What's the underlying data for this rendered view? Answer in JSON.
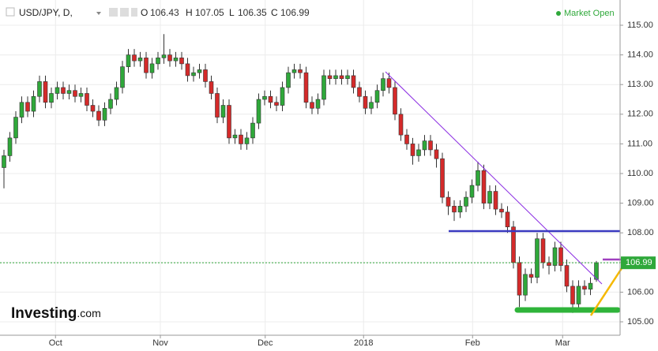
{
  "header": {
    "title": "USD/JPY, D,",
    "o_label": "O",
    "h_label": "H",
    "l_label": "L",
    "c_label": "C",
    "status": "Market Open"
  },
  "logo": {
    "name": "Investing",
    "suffix": ".com"
  },
  "chart_data": {
    "type": "candlestick",
    "open": [
      110.2,
      110.6,
      111.2,
      111.9,
      112.4,
      112.1,
      112.6,
      113.1,
      112.4,
      112.7,
      112.9,
      112.7,
      112.8,
      112.6,
      112.7,
      112.3,
      112.1,
      111.8,
      112.2,
      112.5,
      112.9,
      113.6,
      114.0,
      113.8,
      113.9,
      113.4,
      113.7,
      113.9,
      114.0,
      113.8,
      113.9,
      113.7,
      113.3,
      113.4,
      113.5,
      113.1,
      112.7,
      111.9,
      112.3,
      111.2,
      111.3,
      111.0,
      111.2,
      111.7,
      112.5,
      112.6,
      112.4,
      112.3,
      112.9,
      113.4,
      113.5,
      113.4,
      112.4,
      112.2,
      112.5,
      113.3,
      113.2,
      113.3,
      113.2,
      113.3,
      112.9,
      112.6,
      112.2,
      112.4,
      112.8,
      113.2,
      112.9,
      112.0,
      111.3,
      111.0,
      110.6,
      110.8,
      111.1,
      110.8,
      110.5,
      109.2,
      108.9,
      108.7,
      108.9,
      109.2,
      109.6,
      110.1,
      109.0,
      109.4,
      108.8,
      108.7,
      108.2,
      107.0,
      105.9,
      106.6,
      106.5,
      107.8,
      107.0,
      106.9,
      107.5,
      106.9,
      106.2,
      105.6,
      106.2,
      106.1,
      106.43
    ],
    "high": [
      110.8,
      111.4,
      112.1,
      112.6,
      112.6,
      112.8,
      113.3,
      113.3,
      112.9,
      113.1,
      113.1,
      113.0,
      113.0,
      112.9,
      112.9,
      112.5,
      112.3,
      112.4,
      112.7,
      113.1,
      113.8,
      114.2,
      114.2,
      114.1,
      114.1,
      113.9,
      114.1,
      114.7,
      114.2,
      114.1,
      114.1,
      113.9,
      113.6,
      113.7,
      113.7,
      113.3,
      112.9,
      112.5,
      112.5,
      111.5,
      111.5,
      111.4,
      111.9,
      112.7,
      112.8,
      112.8,
      112.6,
      113.1,
      113.6,
      113.7,
      113.7,
      113.6,
      112.6,
      112.7,
      113.5,
      113.5,
      113.5,
      113.5,
      113.5,
      113.5,
      113.1,
      112.8,
      112.6,
      113.0,
      113.4,
      113.4,
      113.1,
      112.2,
      111.5,
      111.2,
      111.0,
      111.3,
      111.3,
      111.0,
      110.7,
      109.4,
      109.1,
      109.1,
      109.4,
      109.8,
      110.4,
      110.3,
      109.6,
      109.6,
      109.0,
      108.9,
      108.4,
      107.2,
      106.8,
      106.8,
      108.0,
      108.0,
      107.2,
      107.7,
      107.7,
      107.1,
      106.4,
      106.4,
      106.4,
      106.5,
      107.05
    ],
    "low": [
      109.5,
      110.4,
      111.0,
      111.7,
      111.9,
      111.9,
      112.4,
      112.2,
      112.2,
      112.5,
      112.5,
      112.5,
      112.4,
      112.4,
      112.1,
      111.9,
      111.6,
      111.6,
      112.0,
      112.3,
      112.7,
      113.4,
      113.6,
      113.6,
      113.2,
      113.2,
      113.5,
      113.7,
      113.6,
      113.6,
      113.5,
      113.1,
      113.1,
      113.2,
      112.9,
      112.5,
      111.7,
      111.7,
      111.0,
      111.0,
      110.8,
      110.8,
      111.0,
      111.5,
      112.3,
      112.2,
      112.1,
      112.1,
      112.7,
      113.2,
      113.2,
      112.2,
      112.0,
      112.0,
      112.3,
      113.0,
      113.0,
      113.0,
      113.0,
      112.7,
      112.4,
      112.0,
      112.0,
      112.2,
      112.6,
      112.7,
      111.8,
      111.1,
      110.8,
      110.3,
      110.4,
      110.6,
      110.6,
      110.2,
      109.0,
      108.6,
      108.4,
      108.5,
      108.7,
      109.0,
      109.4,
      108.8,
      108.8,
      108.6,
      108.5,
      108.0,
      106.8,
      105.5,
      105.7,
      106.3,
      106.3,
      106.8,
      106.6,
      106.7,
      106.7,
      106.0,
      105.3,
      105.4,
      105.9,
      105.9,
      106.35
    ],
    "close": [
      110.6,
      111.2,
      111.9,
      112.4,
      112.1,
      112.6,
      113.1,
      112.4,
      112.7,
      112.9,
      112.7,
      112.8,
      112.6,
      112.7,
      112.3,
      112.1,
      111.8,
      112.2,
      112.5,
      112.9,
      113.6,
      114.0,
      113.8,
      113.9,
      113.4,
      113.7,
      113.9,
      114.0,
      113.8,
      113.9,
      113.7,
      113.3,
      113.4,
      113.5,
      113.1,
      112.7,
      111.9,
      112.3,
      111.2,
      111.3,
      111.0,
      111.2,
      111.7,
      112.5,
      112.6,
      112.4,
      112.3,
      112.9,
      113.4,
      113.5,
      113.4,
      112.4,
      112.2,
      112.5,
      113.3,
      113.2,
      113.3,
      113.2,
      113.3,
      112.9,
      112.6,
      112.2,
      112.4,
      112.8,
      113.2,
      112.9,
      112.0,
      111.3,
      111.0,
      110.6,
      110.8,
      111.1,
      110.8,
      110.5,
      109.2,
      108.9,
      108.7,
      108.9,
      109.2,
      109.6,
      110.1,
      109.0,
      109.4,
      108.8,
      108.7,
      108.2,
      107.0,
      105.9,
      106.6,
      106.5,
      107.8,
      107.0,
      106.9,
      107.5,
      106.9,
      106.2,
      105.6,
      106.2,
      106.1,
      106.3,
      106.99
    ],
    "last_open": 106.43,
    "last_high": 107.05,
    "last_low": 106.35,
    "last_close": 106.99,
    "up_color": "#2fa83a",
    "down_color": "#d42a2a",
    "ylim": [
      105,
      115
    ],
    "yticks": [
      {
        "value": 105,
        "label": "105.00"
      },
      {
        "value": 106,
        "label": "106.00"
      },
      {
        "value": 107,
        "label": "107.00"
      },
      {
        "value": 108,
        "label": "108.00"
      },
      {
        "value": 109,
        "label": "109.00"
      },
      {
        "value": 110,
        "label": "110.00"
      },
      {
        "value": 111,
        "label": "111.00"
      },
      {
        "value": 112,
        "label": "112.00"
      },
      {
        "value": 113,
        "label": "113.00"
      },
      {
        "value": 114,
        "label": "114.00"
      },
      {
        "value": 115,
        "label": "115.00"
      }
    ],
    "last_label": "106.99",
    "xticks": [
      {
        "value": 8.7,
        "label": "Oct"
      },
      {
        "value": 26.4,
        "label": "Nov"
      },
      {
        "value": 44.1,
        "label": "Dec"
      },
      {
        "value": 60.7,
        "label": "2018"
      },
      {
        "value": 79.1,
        "label": "Feb"
      },
      {
        "value": 94.3,
        "label": "Mar"
      }
    ],
    "grid": true
  }
}
